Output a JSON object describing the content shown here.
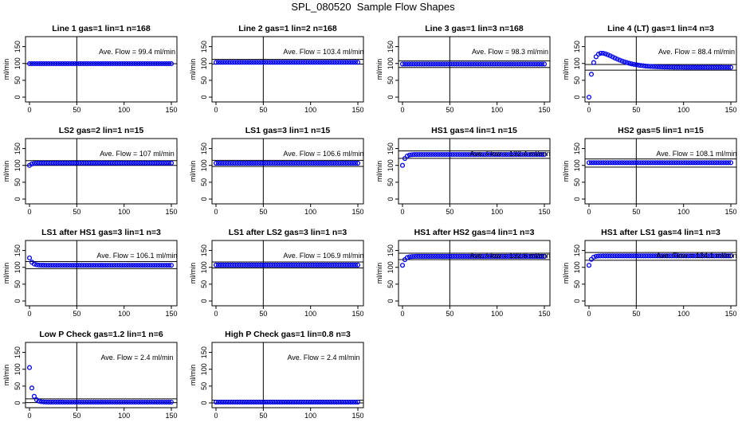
{
  "figure_title": "SPL_080520  Sample Flow Shapes",
  "y_label": "ml/min",
  "chart_data": [
    {
      "type": "scatter",
      "title": "Line 1 gas=1 lin=1 n=168",
      "annotation": "Ave. Flow =  99.4  ml/min",
      "hlines": [
        99.4
      ],
      "vline": 50,
      "xlim": [
        0,
        150
      ],
      "ylim": [
        0,
        175
      ],
      "x_ticks": [
        0,
        50,
        100,
        150
      ],
      "y_ticks": [
        0,
        50,
        100,
        150
      ],
      "shape": "flat",
      "level": 99.4
    },
    {
      "type": "scatter",
      "title": "Line 2 gas=1 lin=2 n=168",
      "annotation": "Ave. Flow =  103.4  ml/min",
      "hlines": [
        98,
        112
      ],
      "vline": 50,
      "xlim": [
        0,
        150
      ],
      "ylim": [
        0,
        175
      ],
      "x_ticks": [
        0,
        50,
        100,
        150
      ],
      "y_ticks": [
        0,
        50,
        100,
        150
      ],
      "shape": "flat",
      "level": 103.4
    },
    {
      "type": "scatter",
      "title": "Line 3 gas=1 lin=3 n=168",
      "annotation": "Ave. Flow =  98.3  ml/min",
      "hlines": [
        88,
        108
      ],
      "vline": 50,
      "xlim": [
        0,
        150
      ],
      "ylim": [
        0,
        175
      ],
      "x_ticks": [
        0,
        50,
        100,
        150
      ],
      "y_ticks": [
        0,
        50,
        100,
        150
      ],
      "shape": "flat",
      "level": 98.3
    },
    {
      "type": "scatter",
      "title": "Line 4 (LT) gas=1 lin=4 n=3",
      "annotation": "Ave. Flow =  88.4  ml/min",
      "hlines": [
        80,
        97
      ],
      "vline": 50,
      "xlim": [
        0,
        150
      ],
      "ylim": [
        0,
        175
      ],
      "x_ticks": [
        0,
        50,
        100,
        150
      ],
      "y_ticks": [
        0,
        50,
        100,
        150
      ],
      "shape": "overshoot",
      "level": 88.4,
      "start": 0,
      "peak": 132
    },
    {
      "type": "scatter",
      "title": "LS2 gas=2 lin=1 n=15",
      "annotation": "Ave. Flow =  107  ml/min",
      "hlines": [
        100,
        114
      ],
      "vline": 50,
      "xlim": [
        0,
        150
      ],
      "ylim": [
        0,
        175
      ],
      "x_ticks": [
        0,
        50,
        100,
        150
      ],
      "y_ticks": [
        0,
        50,
        100,
        150
      ],
      "shape": "rise",
      "level": 107,
      "start": 100
    },
    {
      "type": "scatter",
      "title": "LS1 gas=3 lin=1 n=15",
      "annotation": "Ave. Flow =  106.6  ml/min",
      "hlines": [
        97,
        115
      ],
      "vline": 50,
      "xlim": [
        0,
        150
      ],
      "ylim": [
        0,
        175
      ],
      "x_ticks": [
        0,
        50,
        100,
        150
      ],
      "y_ticks": [
        0,
        50,
        100,
        150
      ],
      "shape": "flat",
      "level": 106.6
    },
    {
      "type": "scatter",
      "title": "HS1 gas=4 lin=1 n=15",
      "annotation": "Ave. Flow =  132.4  ml/min",
      "hlines": [
        121,
        143
      ],
      "vline": 50,
      "xlim": [
        0,
        150
      ],
      "ylim": [
        0,
        175
      ],
      "x_ticks": [
        0,
        50,
        100,
        150
      ],
      "y_ticks": [
        0,
        50,
        100,
        150
      ],
      "shape": "rise",
      "level": 132.4,
      "start": 100
    },
    {
      "type": "scatter",
      "title": "HS2 gas=5 lin=1 n=15",
      "annotation": "Ave. Flow =  108.1  ml/min",
      "hlines": [
        95,
        119
      ],
      "vline": 50,
      "xlim": [
        0,
        150
      ],
      "ylim": [
        0,
        175
      ],
      "x_ticks": [
        0,
        50,
        100,
        150
      ],
      "y_ticks": [
        0,
        50,
        100,
        150
      ],
      "shape": "flat",
      "level": 108.1
    },
    {
      "type": "scatter",
      "title": "LS1 after HS1 gas=3 lin=1 n=3",
      "annotation": "Ave. Flow =  106.1  ml/min",
      "hlines": [
        96,
        117
      ],
      "vline": 50,
      "xlim": [
        0,
        150
      ],
      "ylim": [
        0,
        175
      ],
      "x_ticks": [
        0,
        50,
        100,
        150
      ],
      "y_ticks": [
        0,
        50,
        100,
        150
      ],
      "shape": "decay",
      "level": 106.1,
      "start": 128
    },
    {
      "type": "scatter",
      "title": "LS1 after LS2 gas=3 lin=1 n=3",
      "annotation": "Ave. Flow =  106.9  ml/min",
      "hlines": [
        98,
        116
      ],
      "vline": 50,
      "xlim": [
        0,
        150
      ],
      "ylim": [
        0,
        175
      ],
      "x_ticks": [
        0,
        50,
        100,
        150
      ],
      "y_ticks": [
        0,
        50,
        100,
        150
      ],
      "shape": "flat",
      "level": 106.9
    },
    {
      "type": "scatter",
      "title": "HS1 after HS2 gas=4 lin=1 n=3",
      "annotation": "Ave. Flow =  132.6  ml/min",
      "hlines": [
        123,
        142
      ],
      "vline": 50,
      "xlim": [
        0,
        150
      ],
      "ylim": [
        0,
        175
      ],
      "x_ticks": [
        0,
        50,
        100,
        150
      ],
      "y_ticks": [
        0,
        50,
        100,
        150
      ],
      "shape": "rise",
      "level": 132.6,
      "start": 106
    },
    {
      "type": "scatter",
      "title": "HS1 after LS1 gas=4 lin=1 n=3",
      "annotation": "Ave. Flow =  134.1  ml/min",
      "hlines": [
        121,
        144
      ],
      "vline": 50,
      "xlim": [
        0,
        150
      ],
      "ylim": [
        0,
        175
      ],
      "x_ticks": [
        0,
        50,
        100,
        150
      ],
      "y_ticks": [
        0,
        50,
        100,
        150
      ],
      "shape": "rise",
      "level": 134.1,
      "start": 106
    },
    {
      "type": "scatter",
      "title": "Low P Check gas=1.2 lin=1 n=6",
      "annotation": "Ave. Flow =  2.4  ml/min",
      "hlines": [
        1,
        12
      ],
      "vline": 50,
      "xlim": [
        0,
        150
      ],
      "ylim": [
        0,
        175
      ],
      "x_ticks": [
        0,
        50,
        100,
        150
      ],
      "y_ticks": [
        0,
        50,
        100,
        150
      ],
      "shape": "decay",
      "level": 2.4,
      "start": 105
    },
    {
      "type": "scatter",
      "title": "High P Check gas=1 lin=0.8 n=3",
      "annotation": "Ave. Flow =  2.4  ml/min",
      "hlines": [
        0,
        8
      ],
      "vline": 50,
      "xlim": [
        0,
        150
      ],
      "ylim": [
        0,
        175
      ],
      "x_ticks": [
        0,
        50,
        100,
        150
      ],
      "y_ticks": [
        0,
        50,
        100,
        150
      ],
      "shape": "flat",
      "level": 2.4
    }
  ]
}
